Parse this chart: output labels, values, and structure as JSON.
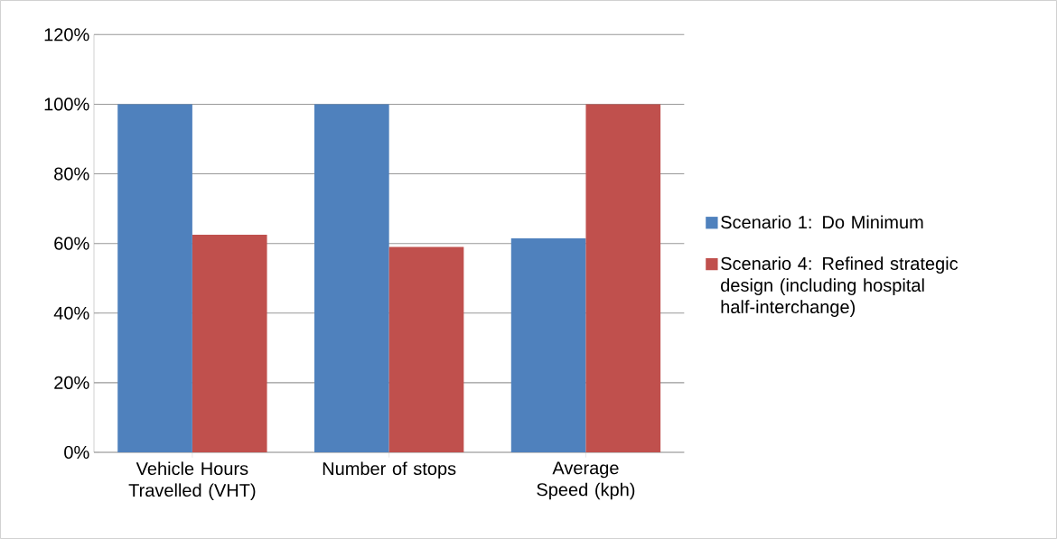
{
  "chart_data": {
    "type": "bar",
    "categories": [
      "Vehicle Hours Travelled (VHT)",
      "Number of stops",
      "Average Speed (kph)"
    ],
    "series": [
      {
        "name": "Scenario 1: Do Minimum",
        "color": "#4f81bd",
        "values": [
          100,
          100,
          61.5
        ]
      },
      {
        "name": "Scenario 4: Refined strategic design (including hospital half-interchange)",
        "color": "#c0504d",
        "values": [
          62.5,
          59,
          100
        ]
      }
    ],
    "ylim": [
      0,
      120
    ],
    "yticks": [
      {
        "value": 0,
        "label": "0%"
      },
      {
        "value": 20,
        "label": "20%"
      },
      {
        "value": 40,
        "label": "40%"
      },
      {
        "value": 60,
        "label": "60%"
      },
      {
        "value": 80,
        "label": "80%"
      },
      {
        "value": 100,
        "label": "100%"
      },
      {
        "value": 120,
        "label": "120%"
      }
    ],
    "grid": "y",
    "legend": "right"
  }
}
